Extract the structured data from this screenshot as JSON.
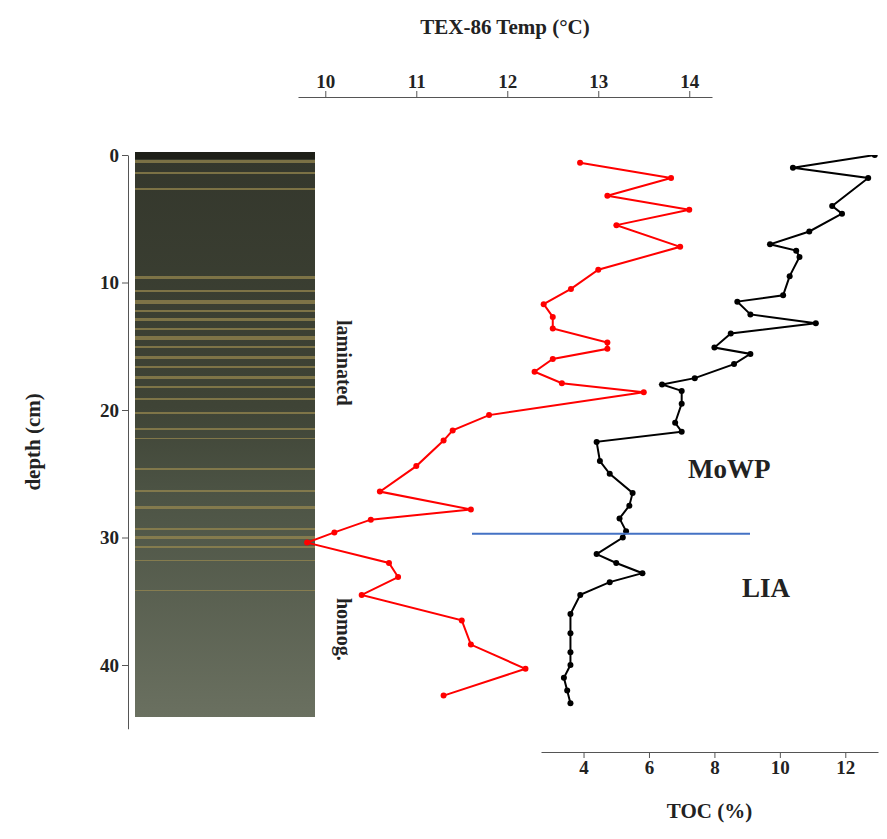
{
  "chart_data": {
    "type": "line",
    "y_label": "depth (cm)",
    "ylim": [
      0,
      45
    ],
    "yticks": [
      0,
      10,
      20,
      30,
      40
    ],
    "xlim": [
      2.7,
      13
    ],
    "xticks": [
      4,
      6,
      8,
      10,
      12
    ],
    "x2lim": [
      9.7,
      14.25
    ],
    "x2ticks": [
      10,
      11,
      12,
      13,
      14
    ],
    "marker": "circle",
    "series": [
      {
        "name": "TEX-86 Temp (°C)",
        "color": "#ff0000",
        "axis": "x2",
        "x": [
          0.6,
          1.8,
          3.2,
          4.3,
          5.5,
          7.2,
          9.0,
          10.5,
          11.7,
          12.7,
          13.6,
          14.7,
          15.2,
          16.0,
          17.0,
          17.9,
          18.6,
          20.4,
          21.6,
          22.4,
          24.4,
          26.4,
          27.8,
          28.6,
          29.6,
          30.4,
          32.0,
          33.1,
          34.5,
          36.5,
          38.4,
          40.3,
          42.4
        ],
        "values": [
          12.8,
          13.8,
          13.1,
          14.0,
          13.2,
          13.9,
          13.0,
          12.7,
          12.4,
          12.5,
          12.5,
          13.1,
          13.1,
          12.5,
          12.3,
          12.6,
          13.5,
          11.8,
          11.4,
          11.3,
          11.0,
          10.6,
          11.6,
          10.5,
          10.1,
          9.8,
          10.7,
          10.8,
          10.4,
          11.5,
          11.6,
          12.2,
          11.3
        ]
      },
      {
        "name": "TOC (%)",
        "color": "#000000",
        "axis": "x",
        "x": [
          0.0,
          1.0,
          1.8,
          4.0,
          4.6,
          6.0,
          7.0,
          7.5,
          8.0,
          9.5,
          11.0,
          11.5,
          12.5,
          13.2,
          14.0,
          15.1,
          15.6,
          16.4,
          17.5,
          18.0,
          18.5,
          19.5,
          21.0,
          21.7,
          22.5,
          24.0,
          25.0,
          26.5,
          27.5,
          28.5,
          29.5,
          30.0,
          31.3,
          32.0,
          32.8,
          33.5,
          34.5,
          36.0,
          37.5,
          39.0,
          40.0,
          41.0,
          42.0,
          43.0
        ],
        "values": [
          12.9,
          10.4,
          12.7,
          11.6,
          11.9,
          10.9,
          9.7,
          10.5,
          10.6,
          10.3,
          10.1,
          8.7,
          9.1,
          11.1,
          8.5,
          8.0,
          9.1,
          8.6,
          7.4,
          6.4,
          7.0,
          7.0,
          6.8,
          7.0,
          4.4,
          4.5,
          4.8,
          5.5,
          5.4,
          5.1,
          5.3,
          5.2,
          4.4,
          5.0,
          5.8,
          4.8,
          3.9,
          3.6,
          3.6,
          3.6,
          3.6,
          3.4,
          3.5,
          3.6
        ]
      }
    ],
    "boundary": {
      "depth": 29.7,
      "color": "#4472c4"
    },
    "annotations": [
      {
        "text": "MoWP"
      },
      {
        "text": "LIA"
      }
    ],
    "core_labels": [
      "laminated",
      "homog."
    ]
  }
}
